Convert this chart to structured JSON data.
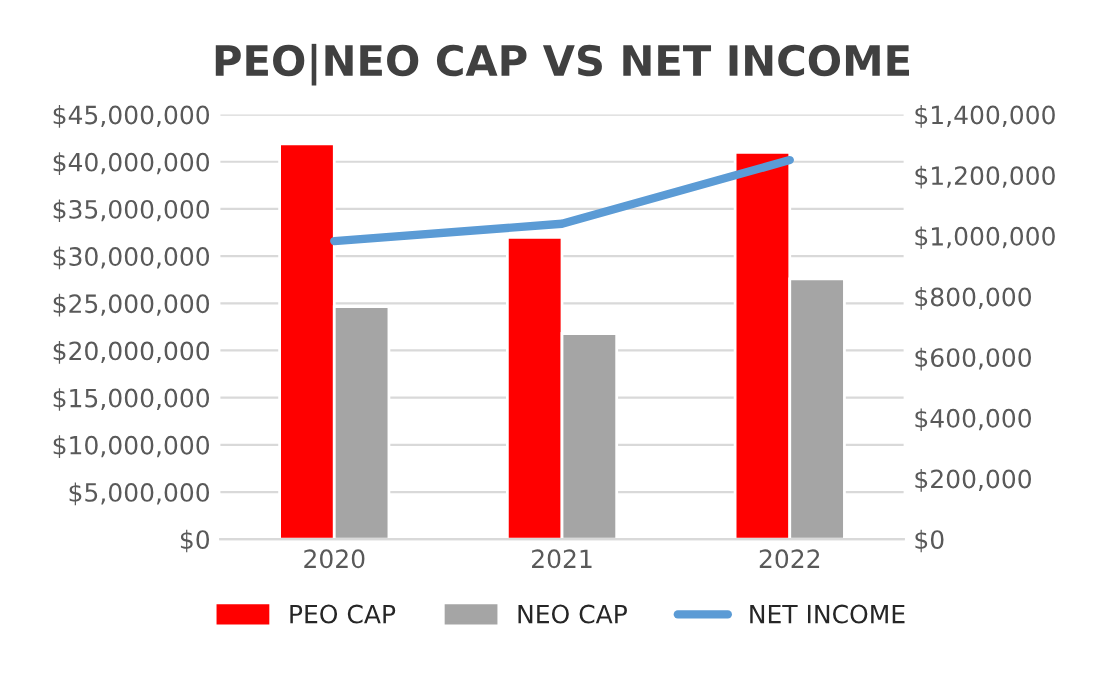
{
  "chart_data": {
    "type": "bar",
    "title": "PEO|NEO CAP VS NET INCOME",
    "categories": [
      "2020",
      "2021",
      "2022"
    ],
    "series": [
      {
        "name": "PEO CAP",
        "color": "#ff0000",
        "values": [
          41900000,
          32000000,
          41000000
        ]
      },
      {
        "name": "NEO CAP",
        "color": "#a5a5a5",
        "values": [
          24650000,
          21800000,
          27600000
        ]
      },
      {
        "name": "NET INCOME",
        "type": "line",
        "axis": "y2",
        "color": "#5b9bd5",
        "values": [
          983000,
          1040000,
          1250000
        ]
      }
    ],
    "ylim": [
      0,
      45000000
    ],
    "yticks": [
      {
        "value": 0,
        "label": "$0"
      },
      {
        "value": 5000000,
        "label": "$5,000,000"
      },
      {
        "value": 10000000,
        "label": "$10,000,000"
      },
      {
        "value": 15000000,
        "label": "$15,000,000"
      },
      {
        "value": 20000000,
        "label": "$20,000,000"
      },
      {
        "value": 25000000,
        "label": "$25,000,000"
      },
      {
        "value": 30000000,
        "label": "$30,000,000"
      },
      {
        "value": 35000000,
        "label": "$35,000,000"
      },
      {
        "value": 40000000,
        "label": "$40,000,000"
      },
      {
        "value": 45000000,
        "label": "$45,000,000"
      }
    ],
    "y2lim": [
      0,
      1400000
    ],
    "y2ticks": [
      {
        "value": 0,
        "label": "$0"
      },
      {
        "value": 200000,
        "label": "$200,000"
      },
      {
        "value": 400000,
        "label": "$400,000"
      },
      {
        "value": 600000,
        "label": "$600,000"
      },
      {
        "value": 800000,
        "label": "$800,000"
      },
      {
        "value": 1000000,
        "label": "$1,000,000"
      },
      {
        "value": 1200000,
        "label": "$1,200,000"
      },
      {
        "value": 1400000,
        "label": "$1,400,000"
      }
    ],
    "grid": "y",
    "legend": "bottom"
  }
}
